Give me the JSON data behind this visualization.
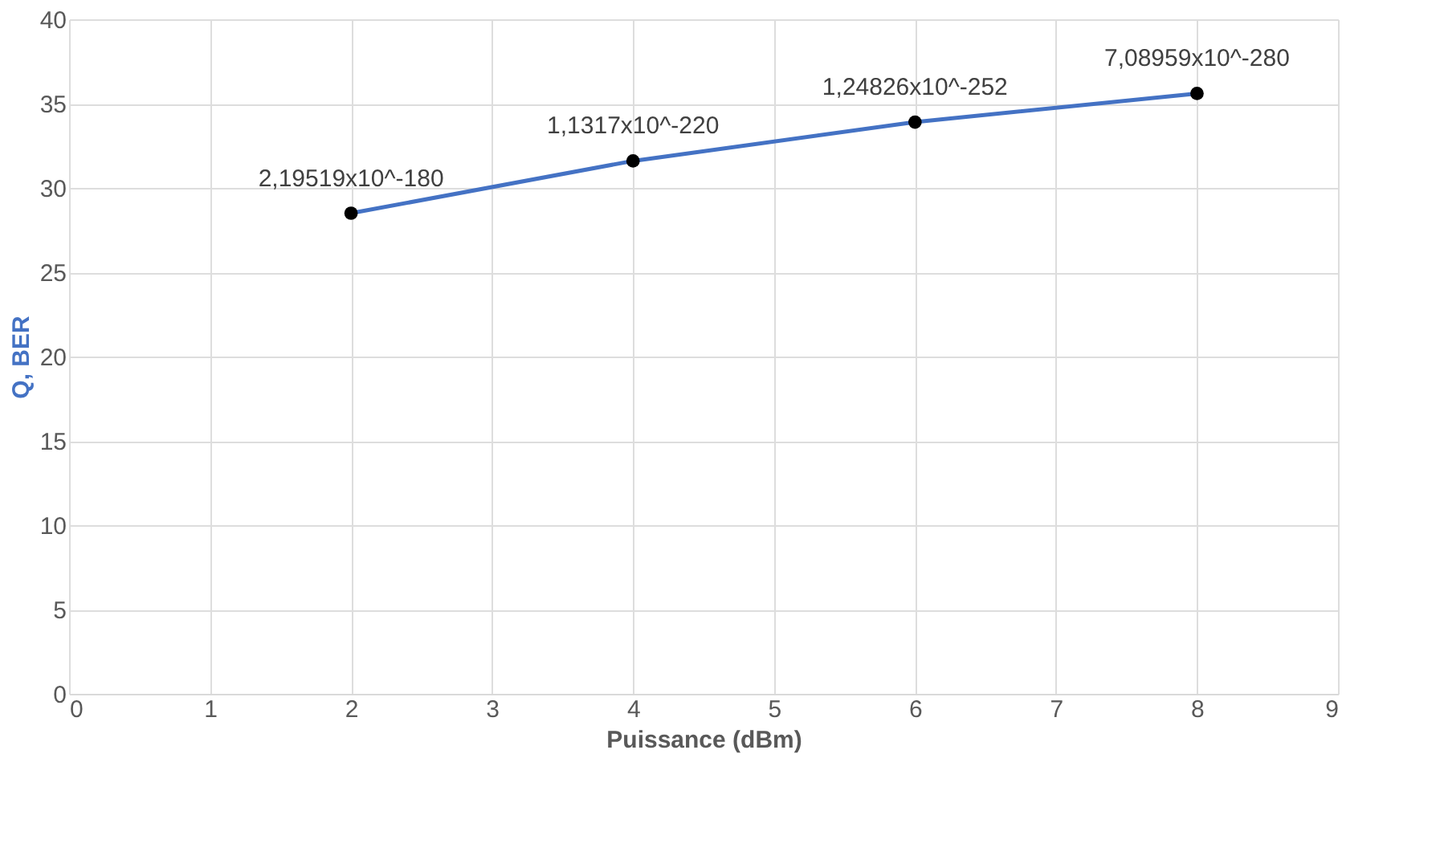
{
  "chart_data": {
    "type": "line",
    "xlabel": "Puissance (dBm)",
    "ylabel": "Q, BER",
    "x": [
      2,
      4,
      6,
      8
    ],
    "series": [
      {
        "color": "#4472c4",
        "values": [
          28.5,
          31.6,
          33.9,
          35.6
        ]
      }
    ],
    "annotations": [
      {
        "text": "2,19519x10^-180",
        "x": 2,
        "y": 28.5
      },
      {
        "text": "1,1317x10^-220",
        "x": 4,
        "y": 31.6
      },
      {
        "text": "1,24826x10^-252",
        "x": 6,
        "y": 33.9
      },
      {
        "text": "7,08959x10^-280",
        "x": 8,
        "y": 35.6
      }
    ],
    "xlim": [
      0,
      9
    ],
    "xticks": [
      0,
      1,
      2,
      3,
      4,
      5,
      6,
      7,
      8,
      9
    ],
    "ylim": [
      0,
      40
    ],
    "yticks": [
      0,
      5,
      10,
      15,
      20,
      25,
      30,
      35,
      40
    ],
    "grid": true,
    "marker": "circle",
    "line_style": "solid"
  }
}
